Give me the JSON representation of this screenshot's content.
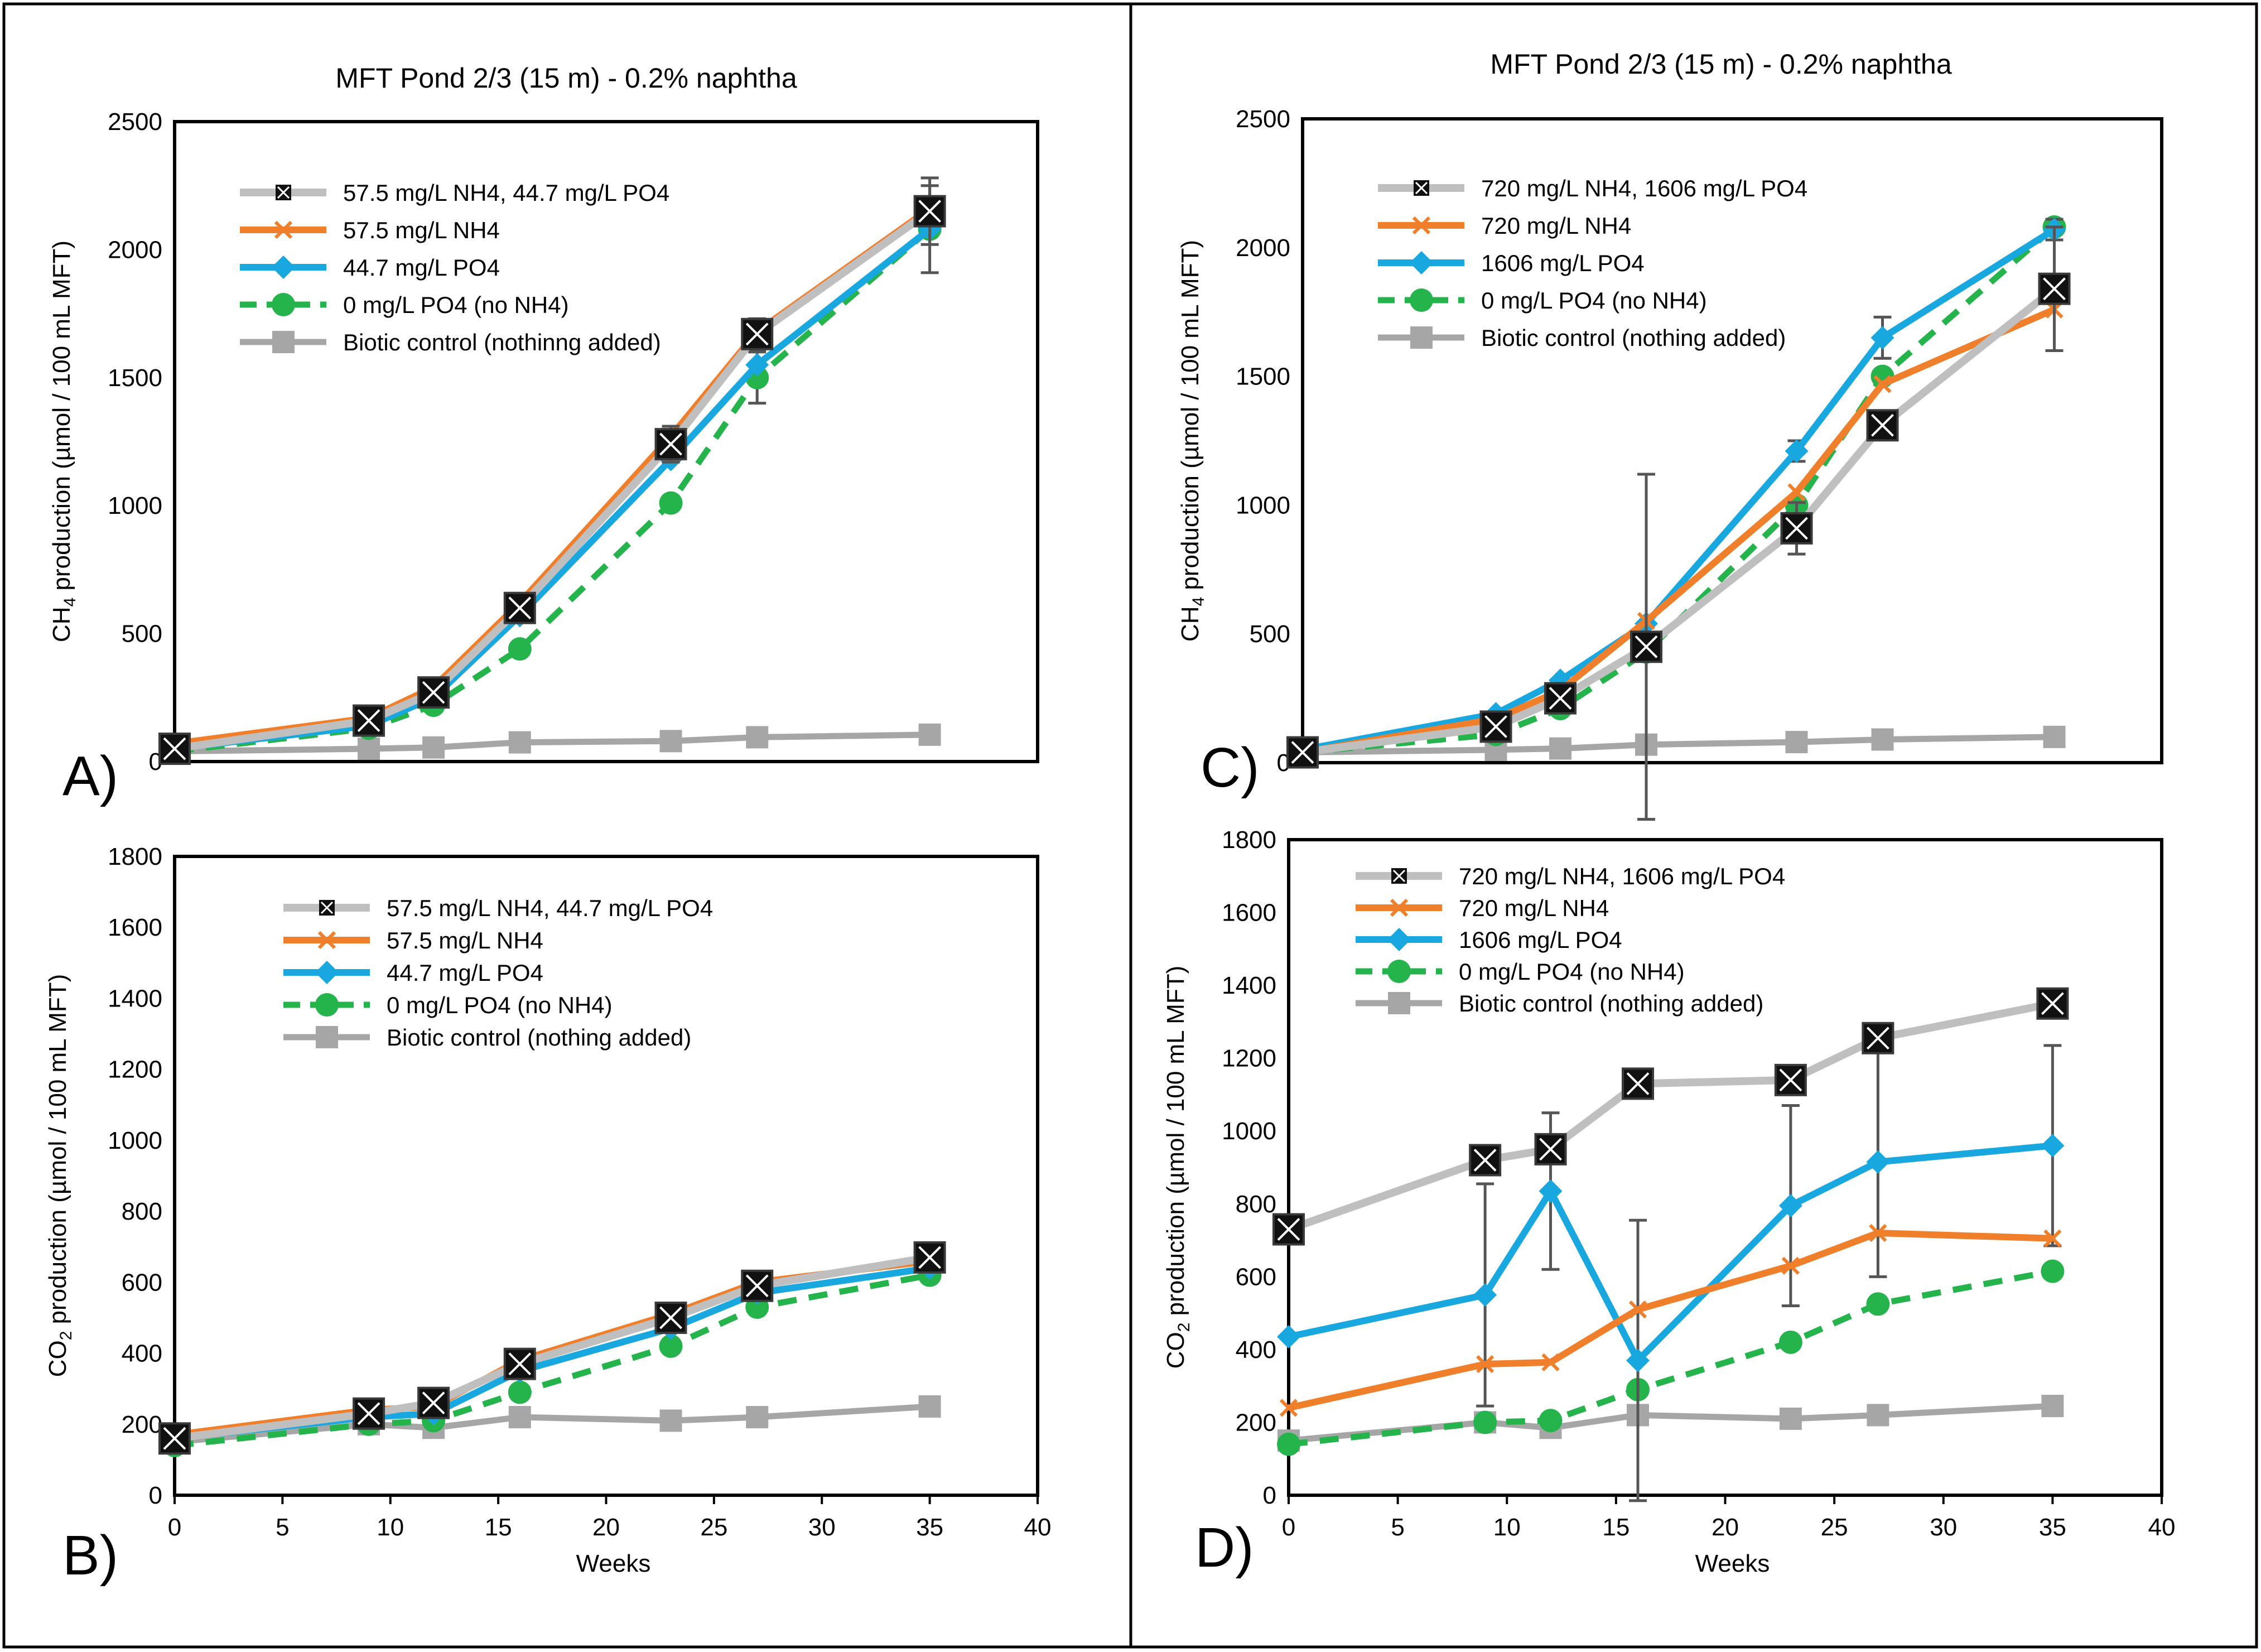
{
  "figure": {
    "title_top_left": "MFT Pond 2/3 (15 m) - 0.2% naphtha",
    "title_top_right": "MFT Pond 2/3 (15 m) - 0.2% naphtha",
    "xlabel": "Weeks",
    "panel_labels": [
      "A)",
      "B)",
      "C)",
      "D)"
    ]
  },
  "colors": {
    "gray_light": "#bfbfbf",
    "gray_dark": "#a6a6a6",
    "orange": "#f07f2b",
    "blue": "#19a7df",
    "green": "#25b34b",
    "black": "#000000"
  },
  "chart_data": [
    {
      "id": "A",
      "type": "line",
      "title": "MFT Pond 2/3 (15 m) - 0.2% naphtha",
      "ylabel_prefix": "CH",
      "ylabel_sub": "4",
      "ylabel_suffix": " production (µmol  / 100 mL MFT)",
      "xlabel": "",
      "xlim": [
        0,
        40
      ],
      "ylim": [
        0,
        2500
      ],
      "xticks": [],
      "yticks": [
        0,
        500,
        1000,
        1500,
        2000,
        2500
      ],
      "x": [
        0,
        9,
        12,
        16,
        23,
        27,
        35
      ],
      "series": [
        {
          "name": "57.5 mg/L NH4, 44.7 mg/L PO4",
          "style": "xsquare",
          "values": [
            50,
            160,
            270,
            600,
            1240,
            1670,
            2150
          ],
          "errors": [
            0,
            0,
            0,
            0,
            70,
            60,
            130
          ]
        },
        {
          "name": "57.5 mg/L NH4",
          "style": "xcross",
          "values": [
            70,
            170,
            290,
            620,
            1270,
            1680,
            2160
          ],
          "errors": [
            0,
            0,
            0,
            0,
            0,
            0,
            0
          ]
        },
        {
          "name": "44.7 mg/L PO4",
          "style": "diamond",
          "values": [
            50,
            140,
            250,
            570,
            1180,
            1550,
            2080
          ],
          "errors": [
            0,
            0,
            0,
            0,
            0,
            0,
            0
          ]
        },
        {
          "name": "0 mg/L PO4 (no NH4)",
          "style": "circle",
          "values": [
            40,
            130,
            220,
            440,
            1010,
            1500,
            2080
          ],
          "errors": [
            0,
            0,
            0,
            0,
            0,
            100,
            170
          ]
        },
        {
          "name": "Biotic control (nothinng added)",
          "style": "square",
          "values": [
            40,
            50,
            55,
            75,
            80,
            95,
            105
          ],
          "errors": [
            0,
            0,
            0,
            0,
            0,
            0,
            0
          ]
        }
      ]
    },
    {
      "id": "B",
      "type": "line",
      "title": "",
      "ylabel_prefix": "CO",
      "ylabel_sub": "2",
      "ylabel_suffix": " production (µmol  / 100 mL MFT)",
      "xlabel": "Weeks",
      "xlim": [
        0,
        40
      ],
      "ylim": [
        0,
        1800
      ],
      "xticks": [
        0,
        5,
        10,
        15,
        20,
        25,
        30,
        35,
        40
      ],
      "yticks": [
        0,
        200,
        400,
        600,
        800,
        1000,
        1200,
        1400,
        1600,
        1800
      ],
      "x": [
        0,
        9,
        12,
        16,
        23,
        27,
        35
      ],
      "series": [
        {
          "name": "57.5 mg/L NH4, 44.7 mg/L PO4",
          "style": "xsquare",
          "values": [
            160,
            230,
            260,
            370,
            500,
            590,
            670
          ],
          "errors": [
            0,
            0,
            0,
            0,
            0,
            0,
            0
          ]
        },
        {
          "name": "57.5 mg/L NH4",
          "style": "xcross",
          "values": [
            170,
            240,
            250,
            380,
            510,
            600,
            660
          ],
          "errors": [
            0,
            0,
            0,
            0,
            0,
            0,
            0
          ]
        },
        {
          "name": "44.7 mg/L PO4",
          "style": "diamond",
          "values": [
            160,
            220,
            230,
            350,
            470,
            570,
            640
          ],
          "errors": [
            0,
            0,
            0,
            0,
            0,
            0,
            0
          ]
        },
        {
          "name": "0 mg/L PO4 (no NH4)",
          "style": "circle",
          "values": [
            140,
            200,
            210,
            290,
            420,
            530,
            620
          ],
          "errors": [
            0,
            0,
            0,
            0,
            0,
            0,
            0
          ]
        },
        {
          "name": "Biotic control (nothing added)",
          "style": "square",
          "values": [
            150,
            200,
            190,
            220,
            210,
            220,
            250
          ],
          "errors": [
            0,
            0,
            0,
            0,
            0,
            0,
            0
          ]
        }
      ]
    },
    {
      "id": "C",
      "type": "line",
      "title": "MFT Pond 2/3 (15 m) - 0.2% naphtha",
      "ylabel_prefix": "CH",
      "ylabel_sub": "4",
      "ylabel_suffix": " production (µmol  / 100 mL MFT)",
      "xlabel": "",
      "xlim": [
        0,
        40
      ],
      "ylim": [
        0,
        2500
      ],
      "xticks": [],
      "yticks": [
        0,
        500,
        1000,
        1500,
        2000,
        2500
      ],
      "x": [
        0,
        9,
        12,
        16,
        23,
        27,
        35
      ],
      "series": [
        {
          "name": "720 mg/L NH4, 1606 mg/L PO4",
          "style": "xsquare",
          "values": [
            40,
            140,
            250,
            450,
            910,
            1310,
            1840
          ],
          "errors": [
            0,
            0,
            0,
            670,
            100,
            0,
            240
          ]
        },
        {
          "name": "720 mg/L NH4",
          "style": "xcross",
          "values": [
            40,
            170,
            280,
            550,
            1050,
            1470,
            1760
          ],
          "errors": [
            0,
            0,
            0,
            0,
            0,
            0,
            0
          ]
        },
        {
          "name": "1606 mg/L PO4",
          "style": "diamond",
          "values": [
            50,
            190,
            320,
            540,
            1210,
            1650,
            2070
          ],
          "errors": [
            0,
            0,
            0,
            0,
            40,
            80,
            40
          ]
        },
        {
          "name": "0 mg/L PO4 (no NH4)",
          "style": "circle",
          "values": [
            40,
            110,
            210,
            430,
            1000,
            1500,
            2080
          ],
          "errors": [
            0,
            0,
            0,
            0,
            0,
            0,
            0
          ]
        },
        {
          "name": "Biotic control (nothing added)",
          "style": "square",
          "values": [
            40,
            50,
            55,
            70,
            80,
            90,
            100
          ],
          "errors": [
            0,
            0,
            0,
            0,
            0,
            0,
            0
          ]
        }
      ]
    },
    {
      "id": "D",
      "type": "line",
      "title": "",
      "ylabel_prefix": "CO",
      "ylabel_sub": "2",
      "ylabel_suffix": " production (µmol  / 100 mL MFT)",
      "xlabel": "Weeks",
      "xlim": [
        0,
        40
      ],
      "ylim": [
        0,
        1800
      ],
      "xticks": [
        0,
        5,
        10,
        15,
        20,
        25,
        30,
        35,
        40
      ],
      "yticks": [
        0,
        200,
        400,
        600,
        800,
        1000,
        1200,
        1400,
        1600,
        1800
      ],
      "x": [
        0,
        9,
        12,
        16,
        23,
        27,
        35
      ],
      "series": [
        {
          "name": "720 mg/L NH4, 1606 mg/L PO4",
          "style": "xsquare",
          "values": [
            730,
            920,
            950,
            1130,
            1140,
            1255,
            1350
          ],
          "errors": [
            0,
            0,
            0,
            0,
            0,
            0,
            0
          ]
        },
        {
          "name": "720 mg/L NH4",
          "style": "xcross",
          "values": [
            240,
            360,
            365,
            510,
            630,
            720,
            705
          ],
          "errors": [
            0,
            0,
            0,
            0,
            0,
            0,
            0
          ]
        },
        {
          "name": "1606 mg/L PO4",
          "style": "diamond",
          "values": [
            435,
            550,
            835,
            370,
            795,
            915,
            960
          ],
          "errors": [
            0,
            305,
            215,
            385,
            275,
            315,
            275
          ]
        },
        {
          "name": "0 mg/L PO4 (no NH4)",
          "style": "circle",
          "values": [
            140,
            200,
            205,
            290,
            420,
            525,
            615
          ],
          "errors": [
            0,
            0,
            0,
            0,
            0,
            0,
            0
          ]
        },
        {
          "name": "Biotic control (nothing added)",
          "style": "square",
          "values": [
            150,
            200,
            185,
            220,
            210,
            220,
            245
          ],
          "errors": [
            0,
            0,
            0,
            0,
            0,
            0,
            0
          ]
        }
      ]
    }
  ]
}
